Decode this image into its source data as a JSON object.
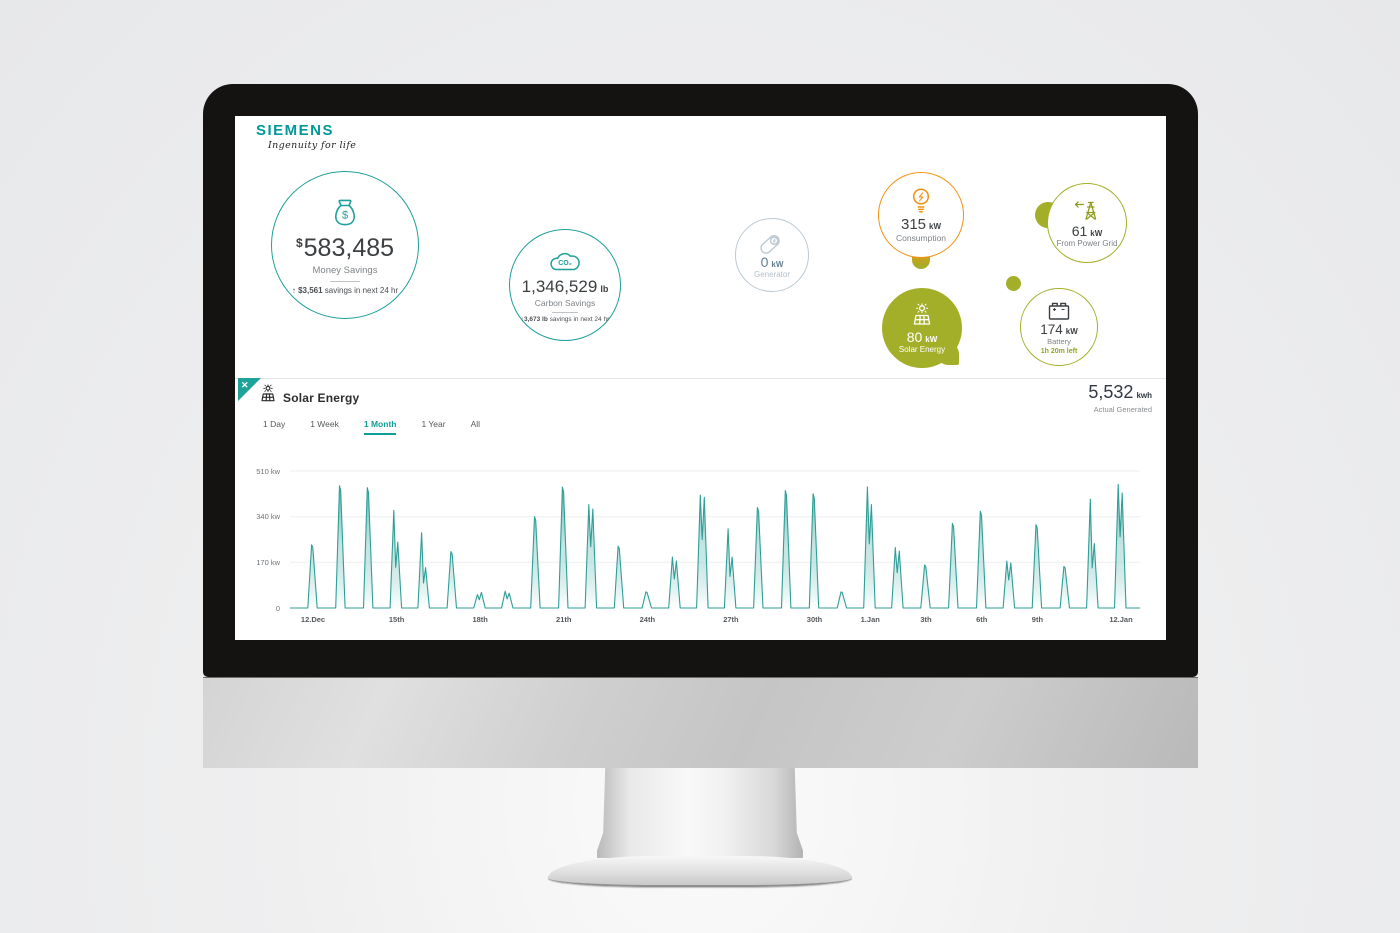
{
  "brand": {
    "logo": "SIEMENS",
    "tagline": "Ingenuity for life"
  },
  "colors": {
    "teal": "#009999",
    "bubble_teal": "#1fa09a",
    "chart_teal": "#2f9e97",
    "orange": "#f29111",
    "olive": "#a3af28",
    "gray_blue": "#bcc9d2"
  },
  "icons": {
    "money": "money-bag-icon",
    "carbon": "co2-cloud-icon",
    "generator": "generator-icon",
    "consumption": "lightbulb-bolt-icon",
    "grid": "power-tower-arrow-icon",
    "solar": "sun-solar-panel-icon",
    "battery": "battery-icon",
    "close": "close-x-icon"
  },
  "metrics": {
    "money": {
      "prefix": "$",
      "value": "583,485",
      "label": "Money Savings",
      "forecast_main": "↑ $3,561",
      "forecast_rest": " savings in next 24 hr"
    },
    "carbon": {
      "value": "1,346,529",
      "unit": "lb",
      "label": "Carbon Savings",
      "icon_text": "CO₂",
      "forecast_main": "↑3,673 lb",
      "forecast_rest": " savings in next 24 hr"
    },
    "generator": {
      "value": "0",
      "unit": "kW",
      "label": "Generator"
    },
    "consumption": {
      "value": "315",
      "unit": "kW",
      "label": "Consumption"
    },
    "grid": {
      "value": "61",
      "unit": "kW",
      "label": "From Power Grid"
    },
    "solar": {
      "value": "80",
      "unit": "kW",
      "label": "Solar Energy"
    },
    "battery": {
      "value": "174",
      "unit": "kW",
      "label": "Battery",
      "time_left": "1h 20m left"
    }
  },
  "panel": {
    "title": "Solar Energy",
    "close_icon": "✕",
    "tabs": [
      {
        "label": "1 Day",
        "active": false
      },
      {
        "label": "1 Week",
        "active": false
      },
      {
        "label": "1 Month",
        "active": true
      },
      {
        "label": "1 Year",
        "active": false
      },
      {
        "label": "All",
        "active": false
      }
    ],
    "total_value": "5,532",
    "total_unit": "kwh",
    "total_label": "Actual Generated"
  },
  "chart_data": {
    "type": "area",
    "title": "Solar Energy - 1 Month",
    "xlabel": "",
    "ylabel": "kW",
    "ylim": [
      0,
      510
    ],
    "grid": true,
    "line_color": "#2f9e97",
    "yticks": [
      {
        "v": 510,
        "label": "510 kw"
      },
      {
        "v": 340,
        "label": "340 kw"
      },
      {
        "v": 170,
        "label": "170 kw"
      },
      {
        "v": 0,
        "label": "0"
      }
    ],
    "spikes": [
      [
        235
      ],
      [
        455
      ],
      [
        448
      ],
      [
        363,
        245
      ],
      [
        280,
        150
      ],
      [
        210
      ],
      [
        50,
        58
      ],
      [
        62,
        55
      ],
      [
        340
      ],
      [
        450
      ],
      [
        385,
        368
      ],
      [
        230
      ],
      [
        60
      ],
      [
        190,
        175
      ],
      [
        420,
        412
      ],
      [
        295,
        190
      ],
      [
        374
      ],
      [
        437
      ],
      [
        425
      ],
      [
        60
      ],
      [
        450,
        385
      ],
      [
        225,
        212
      ],
      [
        160
      ],
      [
        315
      ],
      [
        360
      ],
      [
        175,
        168
      ],
      [
        310
      ],
      [
        155
      ],
      [
        405,
        240
      ],
      [
        460,
        428
      ]
    ],
    "xlabels": [
      {
        "i": 0,
        "label": "12.Dec"
      },
      {
        "i": 3,
        "label": "15th"
      },
      {
        "i": 6,
        "label": "18th"
      },
      {
        "i": 9,
        "label": "21th"
      },
      {
        "i": 12,
        "label": "24th"
      },
      {
        "i": 15,
        "label": "27th"
      },
      {
        "i": 18,
        "label": "30th"
      },
      {
        "i": 20,
        "label": "1.Jan"
      },
      {
        "i": 22,
        "label": "3th"
      },
      {
        "i": 24,
        "label": "6th"
      },
      {
        "i": 26,
        "label": "9th"
      },
      {
        "i": 29,
        "label": "12.Jan"
      }
    ]
  }
}
